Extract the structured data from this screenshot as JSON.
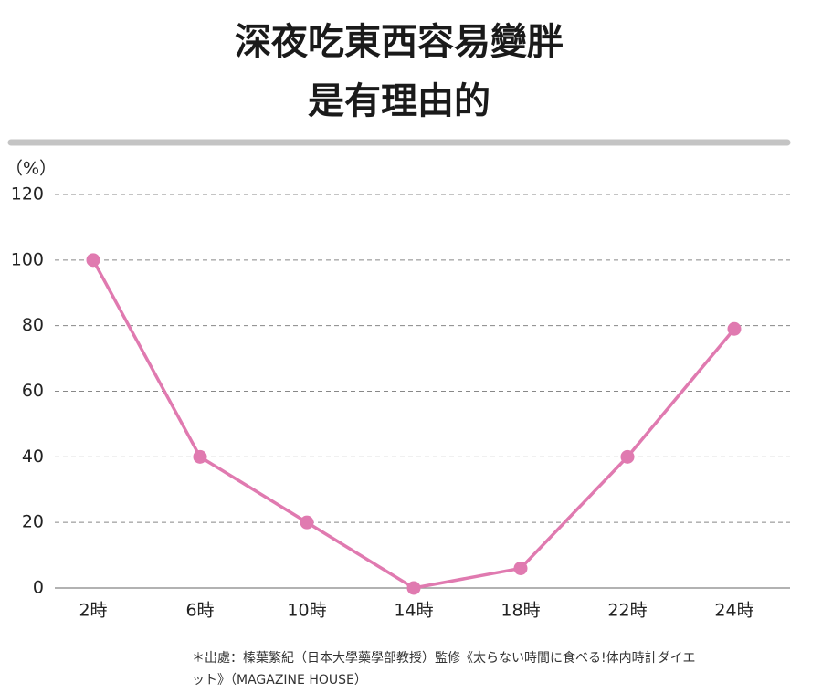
{
  "chart_data": {
    "type": "line",
    "title": [
      "深夜吃東西容易變胖",
      "是有理由的"
    ],
    "y_label": "（%）",
    "categories": [
      "2時",
      "6時",
      "10時",
      "14時",
      "18時",
      "22時",
      "24時"
    ],
    "series": [
      {
        "color": "#e07ab0",
        "values": [
          100,
          40,
          20,
          0,
          6,
          40,
          79
        ]
      }
    ],
    "ylim": [
      0,
      120
    ],
    "yticks": [
      0,
      20,
      40,
      60,
      80,
      100,
      120
    ],
    "grid": true,
    "source": [
      "＊出處：榛葉繁紀（日本大學藥學部教授）監修《太らない時間に食べる!体内時計ダイエ",
      "ット》（MAGAZINE HOUSE）"
    ]
  }
}
